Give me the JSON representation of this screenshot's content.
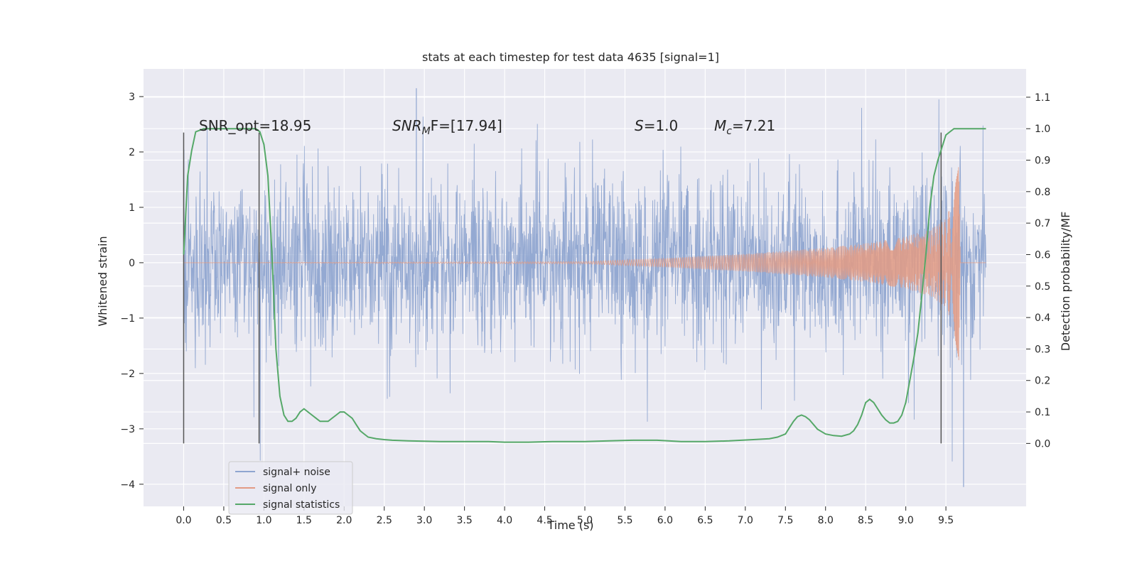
{
  "chart_data": {
    "type": "line",
    "title": "stats at each timestep for test data 4635 [signal=1]",
    "xlabel": "Time (s)",
    "ylabel_left": "Whitened strain",
    "ylabel_right": "Detection probability/MF",
    "xlim": [
      -0.5,
      10.5
    ],
    "ylim_left": [
      -4.4,
      3.5
    ],
    "ylim_right": [
      -0.2,
      1.19
    ],
    "grid": true,
    "legend_position": "lower-left",
    "x_ticks": [
      "0.0",
      "0.5",
      "1.0",
      "1.5",
      "2.0",
      "2.5",
      "3.0",
      "3.5",
      "4.0",
      "4.5",
      "5.0",
      "5.5",
      "6.0",
      "6.5",
      "7.0",
      "7.5",
      "8.0",
      "8.5",
      "9.0",
      "9.5"
    ],
    "y_left_ticks": [
      "3",
      "2",
      "1",
      "0",
      "−1",
      "−2",
      "−3",
      "−4"
    ],
    "y_right_ticks": [
      "1.1",
      "1.0",
      "0.9",
      "0.8",
      "0.7",
      "0.6",
      "0.5",
      "0.4",
      "0.3",
      "0.2",
      "0.1",
      "0.0"
    ],
    "annotations": {
      "snr_opt": "SNR_opt=18.95",
      "snr_mf_prefix": "SNR",
      "snr_mf_sub": "M",
      "snr_mf_suffix": "F=[17.94]",
      "s_label_prefix": "S",
      "s_label_suffix": "=1.0",
      "mc_prefix": "M",
      "mc_sub": "c",
      "mc_suffix": "=7.21"
    },
    "vertical_lines_x": [
      0.0,
      0.94,
      9.44
    ],
    "series": [
      {
        "name": "signal+ noise",
        "color": "#8fa5d0",
        "x_range": [
          0.0,
          10.0
        ],
        "typical_envelope": [
          -1.6,
          1.9
        ],
        "extremes": [
          -4.05,
          3.15
        ]
      },
      {
        "name": "signal only",
        "color": "#e39b84",
        "x_range": [
          0.0,
          10.0
        ],
        "description_points": [
          [
            0.0,
            0.0
          ],
          [
            5.0,
            0.02
          ],
          [
            6.0,
            0.08
          ],
          [
            7.0,
            0.16
          ],
          [
            8.0,
            0.27
          ],
          [
            8.5,
            0.35
          ],
          [
            9.0,
            0.47
          ],
          [
            9.3,
            0.6
          ],
          [
            9.5,
            0.8
          ],
          [
            9.6,
            1.2
          ],
          [
            9.66,
            1.85
          ],
          [
            9.68,
            0.0
          ],
          [
            10.0,
            0.0
          ]
        ]
      },
      {
        "name": "signal statistics",
        "color": "#55a868",
        "x": [
          0.0,
          0.05,
          0.1,
          0.15,
          0.25,
          0.5,
          0.75,
          0.9,
          0.95,
          1.0,
          1.05,
          1.1,
          1.15,
          1.2,
          1.25,
          1.3,
          1.35,
          1.4,
          1.45,
          1.5,
          1.55,
          1.6,
          1.65,
          1.7,
          1.75,
          1.8,
          1.85,
          1.9,
          1.95,
          2.0,
          2.05,
          2.1,
          2.15,
          2.2,
          2.25,
          2.3,
          2.4,
          2.5,
          2.6,
          2.8,
          3.0,
          3.2,
          3.5,
          3.8,
          4.0,
          4.3,
          4.6,
          5.0,
          5.3,
          5.6,
          5.9,
          6.2,
          6.5,
          6.8,
          7.1,
          7.3,
          7.4,
          7.5,
          7.55,
          7.6,
          7.65,
          7.7,
          7.75,
          7.8,
          7.85,
          7.9,
          8.0,
          8.1,
          8.2,
          8.3,
          8.35,
          8.4,
          8.45,
          8.5,
          8.55,
          8.6,
          8.65,
          8.7,
          8.75,
          8.8,
          8.85,
          8.9,
          8.95,
          9.0,
          9.05,
          9.1,
          9.15,
          9.2,
          9.25,
          9.3,
          9.35,
          9.4,
          9.45,
          9.5,
          9.55,
          9.6,
          9.7,
          9.8,
          9.9,
          10.0
        ],
        "y": [
          0.6,
          0.85,
          0.93,
          0.99,
          1.0,
          1.0,
          1.0,
          1.0,
          0.99,
          0.95,
          0.85,
          0.6,
          0.3,
          0.15,
          0.09,
          0.07,
          0.07,
          0.08,
          0.1,
          0.11,
          0.1,
          0.09,
          0.08,
          0.07,
          0.07,
          0.07,
          0.08,
          0.09,
          0.1,
          0.1,
          0.09,
          0.08,
          0.06,
          0.04,
          0.03,
          0.02,
          0.015,
          0.012,
          0.01,
          0.008,
          0.007,
          0.006,
          0.006,
          0.006,
          0.004,
          0.004,
          0.006,
          0.006,
          0.008,
          0.01,
          0.01,
          0.006,
          0.006,
          0.008,
          0.012,
          0.015,
          0.02,
          0.03,
          0.05,
          0.07,
          0.085,
          0.09,
          0.085,
          0.075,
          0.06,
          0.045,
          0.03,
          0.025,
          0.023,
          0.03,
          0.04,
          0.06,
          0.09,
          0.13,
          0.14,
          0.13,
          0.11,
          0.09,
          0.075,
          0.065,
          0.065,
          0.07,
          0.09,
          0.13,
          0.2,
          0.27,
          0.35,
          0.47,
          0.6,
          0.75,
          0.85,
          0.9,
          0.94,
          0.98,
          0.99,
          1.0,
          1.0,
          1.0,
          1.0,
          1.0
        ]
      }
    ]
  }
}
